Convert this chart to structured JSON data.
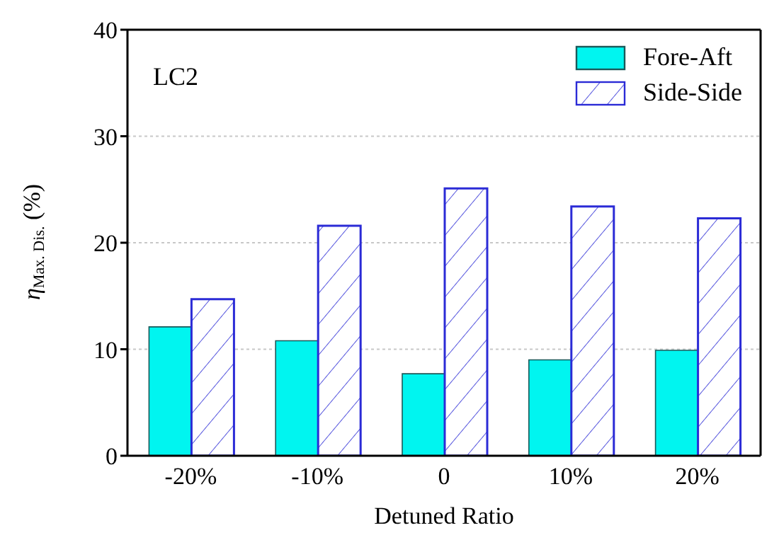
{
  "chart_data": {
    "type": "bar",
    "categories": [
      "-20%",
      "-10%",
      "0",
      "10%",
      "20%"
    ],
    "xlabel": "Detuned Ratio",
    "ylabel": "η$_{Max. Dis.}$ (%)",
    "series": [
      {
        "name": "Fore-Aft",
        "color": "#00f5f0",
        "values": [
          12.1,
          10.8,
          7.7,
          9.0,
          9.9
        ]
      },
      {
        "name": "Side-Side",
        "color": "#2b2bd6",
        "values": [
          14.7,
          21.6,
          25.1,
          23.4,
          22.3
        ]
      }
    ],
    "ylim": [
      0,
      40
    ],
    "yticks": [
      0,
      10,
      20,
      30,
      40
    ],
    "grid": "y",
    "legend": "top right",
    "annotations": [
      "LC2"
    ]
  }
}
